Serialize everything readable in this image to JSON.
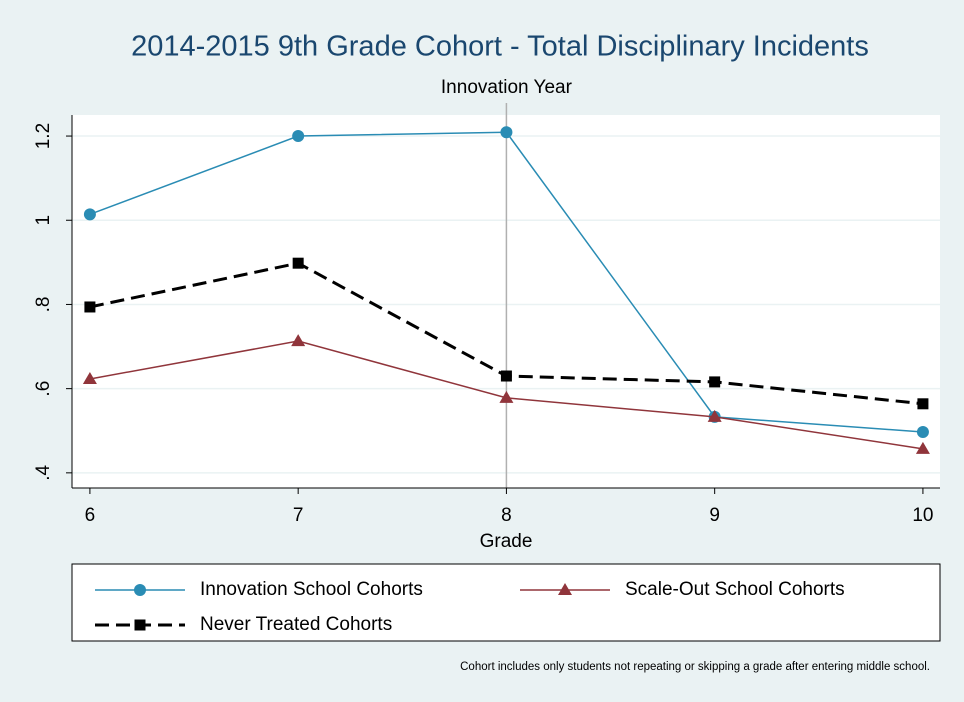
{
  "chart_data": {
    "type": "line",
    "title": "2014-2015 9th Grade Cohort - Total Disciplinary Incidents",
    "x_label": "Grade",
    "x": [
      6,
      7,
      8,
      9,
      10
    ],
    "series": [
      {
        "name": "Innovation School Cohorts",
        "color": "#2a8cb4",
        "marker": "circle",
        "line_style": "solid",
        "values": [
          1.014,
          1.2,
          1.209,
          0.533,
          0.497
        ]
      },
      {
        "name": "Scale-Out School Cohorts",
        "color": "#90353b",
        "marker": "triangle",
        "line_style": "solid",
        "values": [
          0.623,
          0.713,
          0.578,
          0.533,
          0.457
        ]
      },
      {
        "name": "Never Treated Cohorts",
        "color": "#000000",
        "marker": "square",
        "line_style": "dashed",
        "values": [
          0.794,
          0.898,
          0.63,
          0.616,
          0.564
        ]
      }
    ],
    "xlim": [
      5.914,
      10.082
    ],
    "xticks": [
      6,
      7,
      8,
      9,
      10
    ],
    "ylim": [
      0.364,
      1.25
    ],
    "yticks": [
      {
        "value": 0.4,
        "label": ".4"
      },
      {
        "value": 0.6,
        "label": ".6"
      },
      {
        "value": 0.8,
        "label": ".8"
      },
      1,
      1.2
    ],
    "grid": true,
    "xline": {
      "value": 8,
      "label": "Innovation Year"
    },
    "note": "Cohort includes only students not repeating or skipping a grade after entering middle school."
  }
}
